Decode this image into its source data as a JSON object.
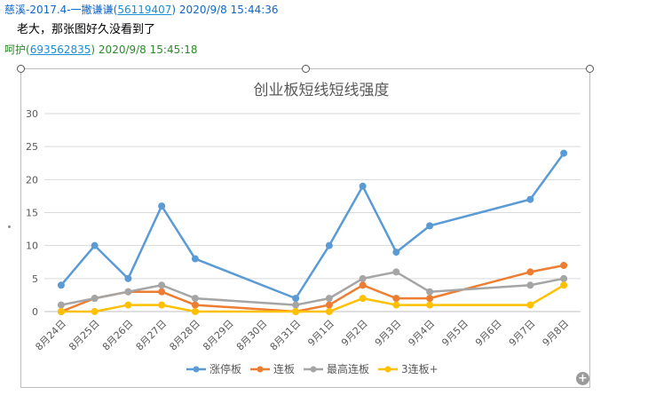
{
  "messages": [
    {
      "name": "慈溪-2017.4-一撇谦谦",
      "id": "56119407",
      "time": "2020/9/8 15:44:36",
      "text": "老大，那张图好久没看到了"
    },
    {
      "name": "呵护",
      "id": "693562835",
      "time": "2020/9/8 15:45:18"
    }
  ],
  "colors": {
    "blue": "#5b9bd5",
    "orange": "#ed7d31",
    "gray": "#a5a5a5",
    "gold": "#ffc000"
  },
  "chart_data": {
    "type": "line",
    "title": "创业板短线短线强度",
    "categories": [
      "8月24日",
      "8月25日",
      "8月26日",
      "8月27日",
      "8月28日",
      "8月29日",
      "8月30日",
      "8月31日",
      "9月1日",
      "9月2日",
      "9月3日",
      "9月4日",
      "9月5日",
      "9月6日",
      "9月7日",
      "9月8日"
    ],
    "ylim": [
      0,
      30
    ],
    "yticks": [
      0,
      5,
      10,
      15,
      20,
      25,
      30
    ],
    "grid": true,
    "legend": "bottom",
    "series": [
      {
        "name": "涨停板",
        "color": "#5b9bd5",
        "values": [
          4,
          10,
          5,
          16,
          8,
          null,
          null,
          2,
          10,
          19,
          9,
          13,
          null,
          null,
          17,
          24
        ]
      },
      {
        "name": "连板",
        "color": "#ed7d31",
        "values": [
          0,
          2,
          3,
          3,
          1,
          null,
          null,
          0,
          1,
          4,
          2,
          2,
          null,
          null,
          6,
          7
        ]
      },
      {
        "name": "最高连板",
        "color": "#a5a5a5",
        "values": [
          1,
          2,
          3,
          4,
          2,
          null,
          null,
          1,
          2,
          5,
          6,
          3,
          null,
          null,
          4,
          5
        ]
      },
      {
        "name": "3连板+",
        "color": "#ffc000",
        "values": [
          0,
          0,
          1,
          1,
          0,
          null,
          null,
          0,
          0,
          2,
          1,
          1,
          null,
          null,
          1,
          4
        ]
      }
    ]
  }
}
